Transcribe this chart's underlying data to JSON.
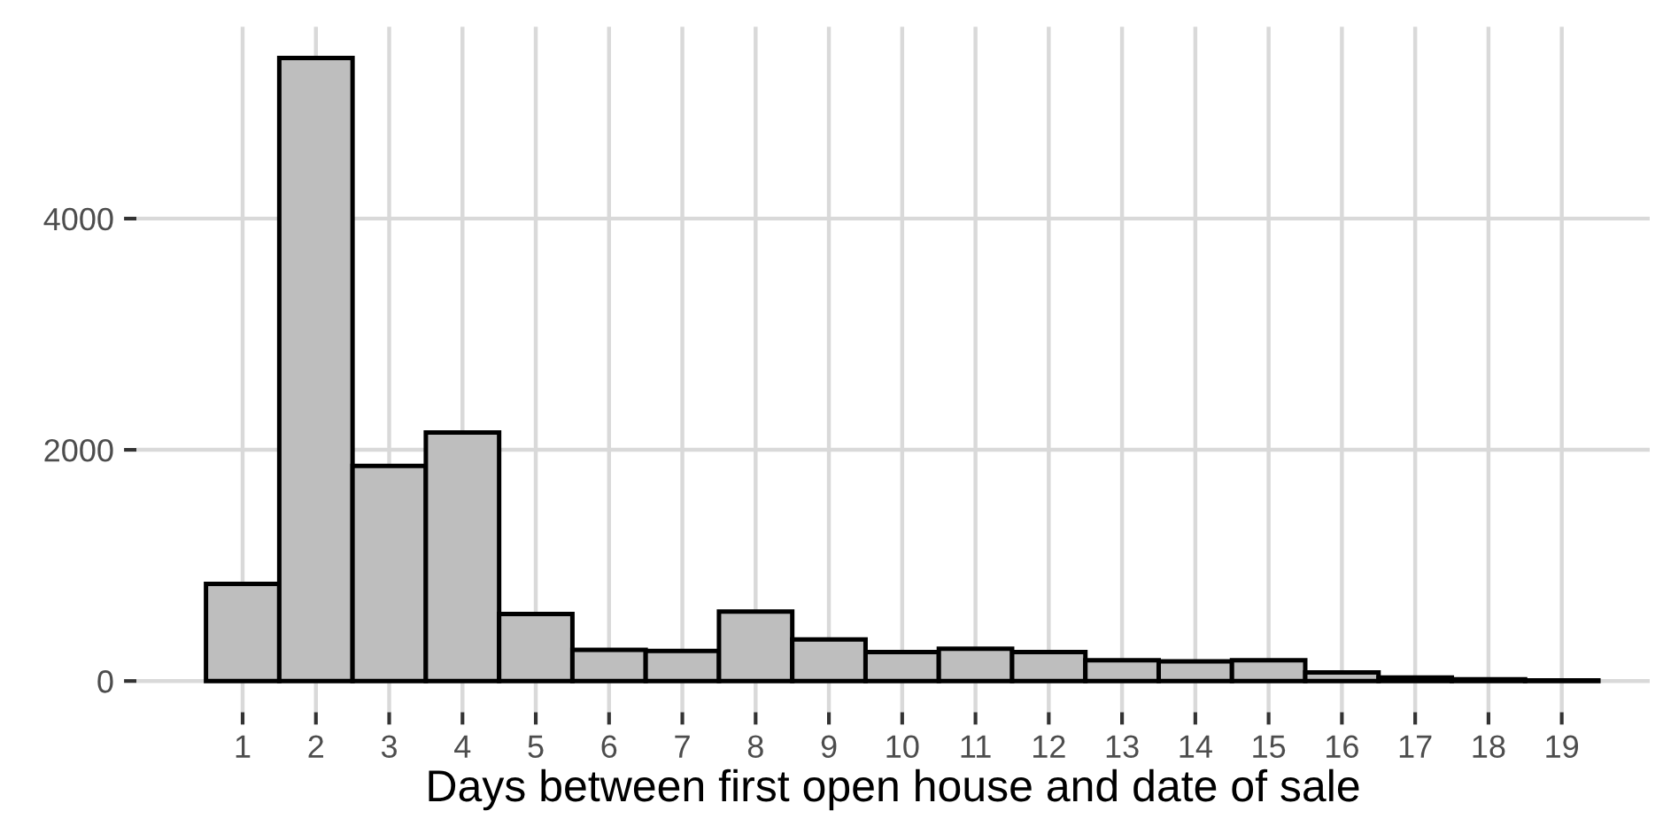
{
  "chart_data": {
    "type": "histogram",
    "xlabel": "Days between first open house and date of sale",
    "bins": [
      0.5,
      1.5,
      2.5,
      3.5,
      4.5,
      5.5,
      6.5,
      7.5,
      8.5,
      9.5,
      10.5,
      11.5,
      12.5,
      13.5,
      14.5,
      15.5,
      16.5,
      17.5,
      18.5,
      19.5
    ],
    "values": [
      840,
      5390,
      1860,
      2150,
      580,
      270,
      260,
      600,
      360,
      250,
      280,
      250,
      180,
      170,
      180,
      75,
      30,
      15,
      5
    ],
    "color": "#bebebe",
    "xlim": [
      -0.45,
      20.2
    ],
    "xticks": [
      1,
      2,
      3,
      4,
      5,
      6,
      7,
      8,
      9,
      10,
      11,
      12,
      13,
      14,
      15,
      16,
      17,
      18,
      19
    ],
    "ylim": [
      -270,
      5660
    ],
    "yticks": [
      0,
      2000,
      4000
    ],
    "grid": true
  }
}
